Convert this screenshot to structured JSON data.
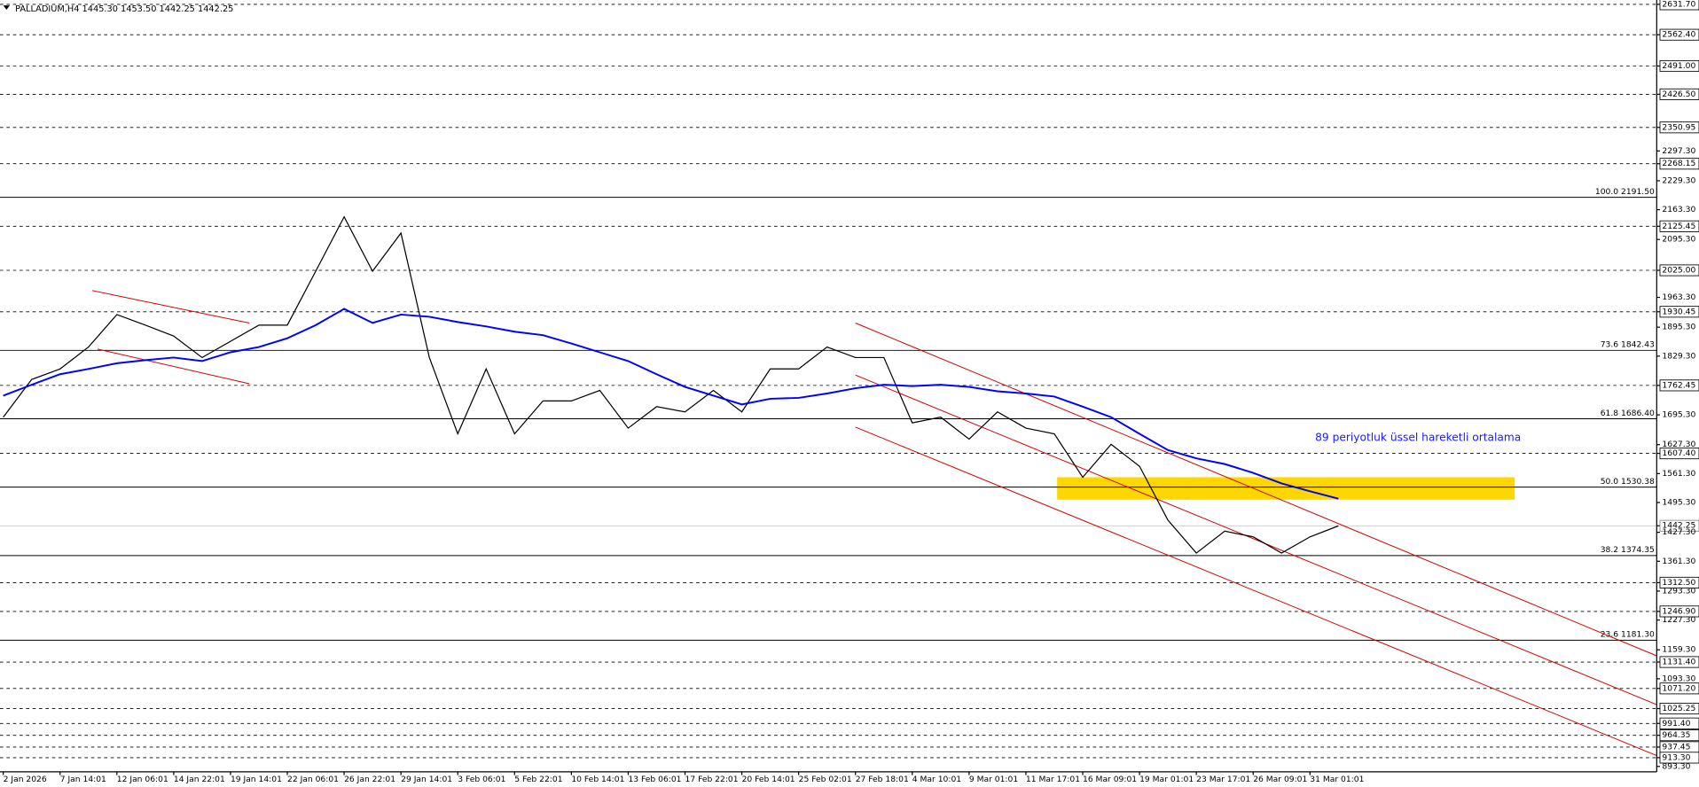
{
  "chart_data": {
    "type": "line",
    "title": "PALLADIUM,H4  1445.30 1453.50 1442.25 1442.25",
    "annotation": "89 periyotluk üssel hareketli ortalama",
    "categories": [
      "2 Jan 2026",
      null,
      "7 Jan 14:01",
      null,
      "12 Jan 06:01",
      null,
      "14 Jan 22:01",
      null,
      "19 Jan 14:01",
      null,
      "22 Jan 06:01",
      null,
      "26 Jan 22:01",
      null,
      "29 Jan 14:01",
      null,
      "3 Feb 06:01",
      null,
      "5 Feb 22:01",
      null,
      "10 Feb 14:01",
      null,
      "13 Feb 06:01",
      null,
      "17 Feb 22:01",
      null,
      "20 Feb 14:01",
      null,
      "25 Feb 02:01",
      null,
      "27 Feb 18:01",
      null,
      "4 Mar 10:01",
      null,
      "9 Mar 01:01",
      null,
      "11 Mar 17:01",
      null,
      "16 Mar 09:01",
      null,
      "19 Mar 01:01",
      null,
      "23 Mar 17:01",
      null,
      "26 Mar 09:01",
      null,
      "31 Mar 01:01",
      null
    ],
    "series": [
      {
        "name": "PALLADIUM",
        "color": "#000000",
        "values": [
          1690,
          1776,
          1800,
          1850,
          1924,
          1900,
          1875,
          1826,
          1863,
          1900,
          1900,
          2023,
          2147,
          2023,
          2110,
          1826,
          1652,
          1800,
          1652,
          1727,
          1727,
          1751,
          1665,
          1714,
          1702,
          1751,
          1702,
          1800,
          1800,
          1850,
          1826,
          1826,
          1677,
          1690,
          1640,
          1702,
          1665,
          1652,
          1553,
          1628,
          1578,
          1455,
          1380,
          1430,
          1417,
          1380,
          1417,
          1442
        ]
      },
      {
        "name": "EMA 89",
        "color": "#0000ff",
        "values": [
          1739,
          1764,
          1788,
          1800,
          1813,
          1820,
          1826,
          1818,
          1838,
          1850,
          1870,
          1900,
          1937,
          1905,
          1924,
          1919,
          1907,
          1897,
          1885,
          1877,
          1858,
          1838,
          1818,
          1788,
          1759,
          1739,
          1719,
          1732,
          1734,
          1744,
          1756,
          1764,
          1761,
          1764,
          1759,
          1749,
          1744,
          1737,
          1714,
          1690,
          1652,
          1615,
          1596,
          1583,
          1563,
          1539,
          1521,
          1504
        ]
      }
    ],
    "ylim": [
      881,
      2641.6
    ],
    "yticks": [
      {
        "value": 2631.7,
        "label": "2631.70"
      },
      {
        "value": 2562.4,
        "label": "2562.40"
      },
      {
        "value": 2491,
        "label": "2491.00"
      },
      {
        "value": 2426.5,
        "label": "2426.50"
      },
      2350.95,
      {
        "value": 2297.3,
        "label": "2297.30"
      },
      2268.15,
      {
        "value": 2229.3,
        "label": "2229.30"
      },
      {
        "value": 2163.3,
        "label": "2163.30"
      },
      2125.45,
      {
        "value": 2095.3,
        "label": "2095.30"
      },
      {
        "value": 2025,
        "label": "2025.00"
      },
      {
        "value": 1963.3,
        "label": "1963.30"
      },
      1930.45,
      {
        "value": 1895.3,
        "label": "1895.30"
      },
      {
        "value": 1829.3,
        "label": "1829.30"
      },
      1762.45,
      {
        "value": 1695.3,
        "label": "1695.30"
      },
      {
        "value": 1627.3,
        "label": "1627.30"
      },
      {
        "value": 1607.4,
        "label": "1607.40"
      },
      {
        "value": 1561.3,
        "label": "1561.30"
      },
      {
        "value": 1495.3,
        "label": "1495.30"
      },
      1442.25,
      {
        "value": 1427.3,
        "label": "1427.30"
      },
      {
        "value": 1361.3,
        "label": "1361.30"
      },
      {
        "value": 1312.5,
        "label": "1312.50"
      },
      {
        "value": 1293.3,
        "label": "1293.30"
      },
      {
        "value": 1246.9,
        "label": "1246.90"
      },
      {
        "value": 1227.3,
        "label": "1227.30"
      },
      {
        "value": 1159.3,
        "label": "1159.30"
      },
      {
        "value": 1131.4,
        "label": "1131.40"
      },
      {
        "value": 1093.3,
        "label": "1093.30"
      },
      {
        "value": 1071.2,
        "label": "1071.20"
      },
      1025.25,
      {
        "value": 991.4,
        "label": "991.40"
      },
      964.35,
      937.45,
      {
        "value": 913.3,
        "label": "913.30"
      },
      {
        "value": 893.3,
        "label": "893.30"
      }
    ],
    "levels": [
      2631.7,
      2562.4,
      2491,
      2426.5,
      2350.95,
      2268.15,
      2125.45,
      2025,
      1930.45,
      1762.45,
      1607.4,
      1312.5,
      1246.9,
      1131.4,
      1071.2,
      1025.25,
      991.4,
      964.35,
      937.45,
      913.3
    ],
    "current_price": 1442.25,
    "fib_levels": [
      {
        "value": 2191.5,
        "label": "100.0 2191.50"
      },
      {
        "value": 1842.43,
        "label": "73.6 1842.43"
      },
      {
        "value": 1686.4,
        "label": "61.8 1686.40"
      },
      {
        "value": 1530.38,
        "label": "50.0 1530.38"
      },
      {
        "value": 1374.35,
        "label": "38.2 1374.35"
      },
      {
        "value": 1181.3,
        "label": "23.6 1181.30"
      }
    ],
    "zone": [
      1502,
      1553
    ]
  }
}
